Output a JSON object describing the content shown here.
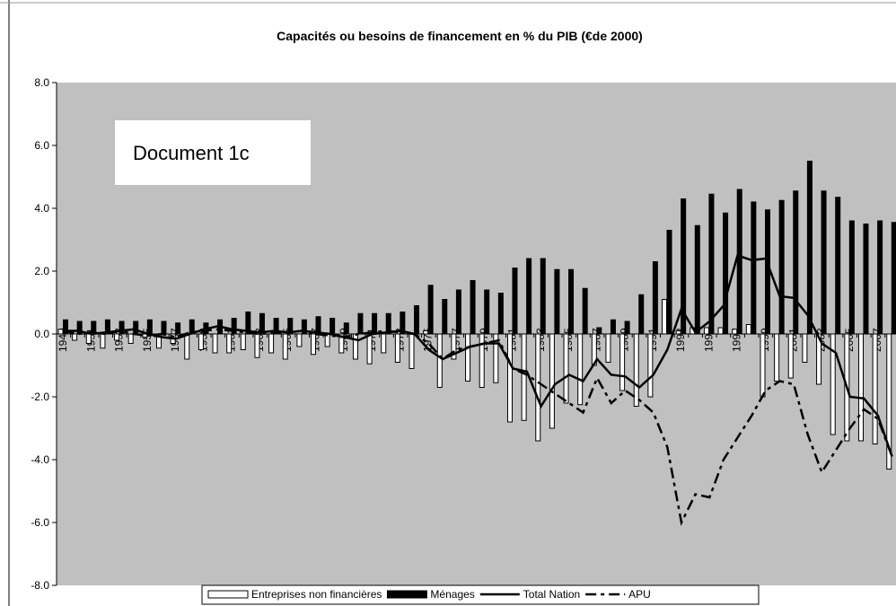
{
  "chart_data": {
    "type": "bar",
    "title": "Capacités ou besoins de financement en % du PIB (€de 2000)",
    "annotation": "Document 1c",
    "categories": [
      "1949",
      null,
      "1951",
      null,
      "1953",
      null,
      "1955",
      null,
      "1957",
      null,
      "1959",
      null,
      "1961",
      null,
      "1963",
      null,
      "1965",
      null,
      "1967",
      null,
      "1969",
      null,
      "1971",
      null,
      "1973",
      null,
      "1975",
      null,
      "1977",
      null,
      "1979",
      null,
      "1981",
      null,
      "1983",
      null,
      "1985",
      null,
      "1987",
      null,
      "1989",
      null,
      "1991",
      null,
      "1993",
      null,
      "1995",
      null,
      "1997",
      null,
      "1999",
      null,
      "2001",
      null,
      "2003",
      null,
      "2005",
      null,
      "2007",
      null
    ],
    "series": [
      {
        "name": "Entreprises non financières",
        "kind": "bar",
        "color": "#ffffff",
        "values": [
          0.15,
          -0.2,
          -0.3,
          -0.45,
          -0.2,
          -0.3,
          -0.1,
          -0.45,
          -0.3,
          -0.8,
          -0.5,
          -0.6,
          -0.6,
          -0.5,
          -0.75,
          -0.6,
          -0.8,
          -0.4,
          -0.65,
          -0.4,
          -0.6,
          -0.8,
          -0.95,
          -0.6,
          -0.9,
          -1.1,
          0.1,
          -1.7,
          -0.8,
          -1.5,
          -1.7,
          -1.55,
          -2.8,
          -2.75,
          -3.4,
          -3.0,
          -2.2,
          -2.25,
          -1.0,
          -0.9,
          -1.8,
          -2.3,
          -2.0,
          1.1,
          0.1,
          0.2,
          0.2,
          0.2,
          0.15,
          0.3,
          -2.0,
          -1.5,
          -1.4,
          -0.9,
          -1.6,
          -3.2,
          -3.4,
          -3.4,
          -3.5,
          -4.3
        ]
      },
      {
        "name": "Ménages",
        "kind": "bar",
        "color": "#000000",
        "values": [
          0.45,
          0.4,
          0.4,
          0.45,
          0.4,
          0.4,
          0.45,
          0.4,
          0.35,
          0.45,
          0.35,
          0.45,
          0.5,
          0.7,
          0.65,
          0.5,
          0.5,
          0.45,
          0.55,
          0.5,
          0.35,
          0.65,
          0.65,
          0.65,
          0.7,
          0.9,
          1.55,
          1.1,
          1.4,
          1.7,
          1.4,
          1.3,
          2.1,
          2.4,
          2.4,
          2.05,
          2.05,
          1.45,
          0.2,
          0.45,
          0.4,
          1.25,
          2.3,
          3.3,
          4.3,
          3.45,
          4.45,
          3.85,
          4.6,
          4.2,
          3.95,
          4.25,
          4.55,
          5.5,
          4.55,
          4.35,
          3.6,
          3.5,
          3.6,
          3.55
        ]
      },
      {
        "name": "Total Nation",
        "kind": "line",
        "color": "#000000",
        "dash": "solid",
        "values": [
          0.1,
          0.1,
          0.0,
          0.05,
          0.1,
          0.15,
          0.0,
          -0.1,
          -0.15,
          0.0,
          0.15,
          0.25,
          0.15,
          0.1,
          0.05,
          0.1,
          0.05,
          0.1,
          0.05,
          0.0,
          -0.1,
          -0.2,
          0.0,
          0.05,
          0.1,
          0.0,
          -0.5,
          -0.8,
          -0.6,
          -0.4,
          -0.3,
          -0.3,
          -1.1,
          -1.2,
          -2.3,
          -1.6,
          -1.3,
          -1.5,
          -0.8,
          -1.3,
          -1.35,
          -1.7,
          -1.3,
          -0.5,
          0.8,
          0.05,
          0.4,
          0.9,
          2.5,
          2.35,
          2.4,
          1.2,
          1.15,
          0.6,
          -0.3,
          -0.6,
          -2.0,
          -2.05,
          -2.6,
          -3.9
        ]
      },
      {
        "name": "APU",
        "kind": "line",
        "color": "#000000",
        "dash": "dashed",
        "values": [
          0.1,
          0.0,
          0.05,
          0.0,
          0.1,
          0.0,
          -0.05,
          0.0,
          -0.1,
          0.05,
          0.1,
          0.15,
          0.1,
          0.05,
          0.0,
          0.05,
          0.05,
          0.1,
          0.0,
          -0.05,
          -0.1,
          0.0,
          0.05,
          0.1,
          0.05,
          0.0,
          -0.3,
          -0.8,
          -0.5,
          -0.4,
          -0.3,
          -0.2,
          -1.1,
          -1.3,
          -1.6,
          -1.9,
          -2.2,
          -2.5,
          -1.4,
          -2.2,
          -1.8,
          -2.1,
          -2.5,
          -3.6,
          -6.0,
          -5.1,
          -5.2,
          -4.0,
          -3.3,
          -2.6,
          -1.8,
          -1.5,
          -1.6,
          -3.2,
          -4.4,
          -3.7,
          -3.0,
          -2.4,
          -2.7,
          -3.9
        ]
      }
    ],
    "ylim": [
      -8,
      8
    ],
    "yticks": [
      {
        "value": -8,
        "label": "-8.0"
      },
      {
        "value": -6,
        "label": "-6.0"
      },
      {
        "value": -4,
        "label": "-4.0"
      },
      {
        "value": -2,
        "label": "-2.0"
      },
      {
        "value": 0,
        "label": "0.0"
      },
      {
        "value": 2,
        "label": "2.0"
      },
      {
        "value": 4,
        "label": "4.0"
      },
      {
        "value": 6,
        "label": "6.0"
      },
      {
        "value": 8,
        "label": "8.0"
      }
    ],
    "plot_background": "#c0c0c0",
    "legend": "bottom"
  }
}
